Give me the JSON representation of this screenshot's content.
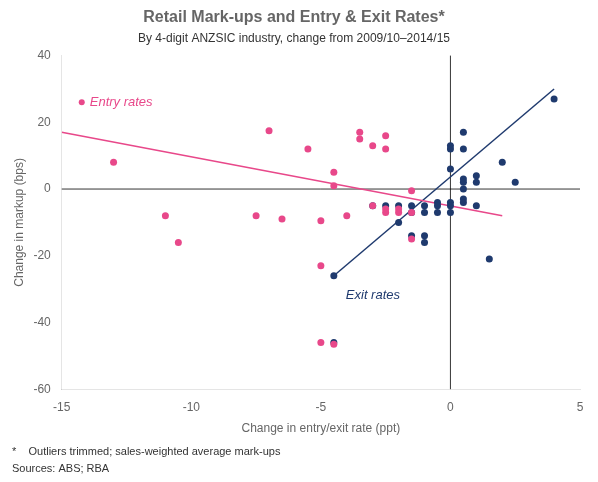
{
  "chart_data": {
    "type": "scatter",
    "title": "Retail Mark-ups and Entry & Exit Rates*",
    "subtitle": "By 4-digit ANZSIC industry, change from 2009/10–2014/15",
    "xlabel": "Change in entry/exit rate (ppt)",
    "ylabel": "Change in markup (bps)",
    "footnote": "*    Outliers trimmed; sales-weighted average mark-ups",
    "source": "Sources: ABS; RBA",
    "xlim": [
      -15,
      5
    ],
    "ylim": [
      -60,
      40
    ],
    "xticks": [
      -15,
      -10,
      -5,
      0,
      5
    ],
    "yticks": [
      -60,
      -40,
      -20,
      0,
      20,
      40
    ],
    "grid": false,
    "series": [
      {
        "name": "Entry rates",
        "type": "scatter",
        "color": "#e8488a",
        "values": [
          [
            -13.0,
            8.0
          ],
          [
            -11.0,
            -8.0
          ],
          [
            -10.5,
            -16.0
          ],
          [
            -7.5,
            -8.0
          ],
          [
            -7.0,
            17.5
          ],
          [
            -6.5,
            -9.0
          ],
          [
            -5.5,
            12.0
          ],
          [
            -5.0,
            -9.5
          ],
          [
            -5.0,
            -23.0
          ],
          [
            -4.5,
            5.0
          ],
          [
            -4.5,
            1.0
          ],
          [
            -4.0,
            -8.0
          ],
          [
            -3.5,
            17.0
          ],
          [
            -3.5,
            15.0
          ],
          [
            -3.0,
            13.0
          ],
          [
            -3.0,
            -5.0
          ],
          [
            -2.5,
            16.0
          ],
          [
            -2.5,
            12.0
          ],
          [
            -2.5,
            -6.0
          ],
          [
            -2.5,
            -7.0
          ],
          [
            -2.0,
            -6.0
          ],
          [
            -2.0,
            -7.0
          ],
          [
            -1.5,
            -0.5
          ],
          [
            -1.5,
            -7.0
          ],
          [
            -1.5,
            -15.0
          ],
          [
            -5.0,
            -46.0
          ],
          [
            -4.5,
            -46.5
          ]
        ]
      },
      {
        "name": "Exit rates",
        "type": "scatter",
        "color": "#1f3a6e",
        "values": [
          [
            -4.5,
            -26.0
          ],
          [
            -3.0,
            -5.0
          ],
          [
            -2.5,
            -5.0
          ],
          [
            -2.0,
            -5.0
          ],
          [
            -2.0,
            -10.0
          ],
          [
            -1.5,
            -5.0
          ],
          [
            -1.5,
            -7.0
          ],
          [
            -1.5,
            -14.0
          ],
          [
            -1.0,
            -5.0
          ],
          [
            -1.0,
            -7.0
          ],
          [
            -1.0,
            -14.0
          ],
          [
            -1.0,
            -16.0
          ],
          [
            -0.5,
            -4.0
          ],
          [
            -0.5,
            -5.0
          ],
          [
            -0.5,
            -7.0
          ],
          [
            0.0,
            13.0
          ],
          [
            0.0,
            12.0
          ],
          [
            0.0,
            6.0
          ],
          [
            0.0,
            -4.0
          ],
          [
            0.0,
            -5.0
          ],
          [
            0.0,
            -7.0
          ],
          [
            0.5,
            17.0
          ],
          [
            0.5,
            12.0
          ],
          [
            0.5,
            3.0
          ],
          [
            0.5,
            2.0
          ],
          [
            0.5,
            0.0
          ],
          [
            0.5,
            -3.0
          ],
          [
            0.5,
            -4.0
          ],
          [
            1.0,
            4.0
          ],
          [
            1.0,
            2.0
          ],
          [
            1.0,
            -5.0
          ],
          [
            1.5,
            -21.0
          ],
          [
            2.0,
            8.0
          ],
          [
            2.5,
            2.0
          ],
          [
            4.0,
            27.0
          ],
          [
            -4.5,
            -46.0
          ]
        ]
      },
      {
        "type": "line",
        "color": "#e8488a",
        "values": [
          [
            -15.0,
            17.0
          ],
          [
            2.0,
            -8.0
          ]
        ]
      },
      {
        "type": "line",
        "color": "#1f3a6e",
        "values": [
          [
            -4.5,
            -26.0
          ],
          [
            4.0,
            30.0
          ]
        ]
      }
    ]
  }
}
